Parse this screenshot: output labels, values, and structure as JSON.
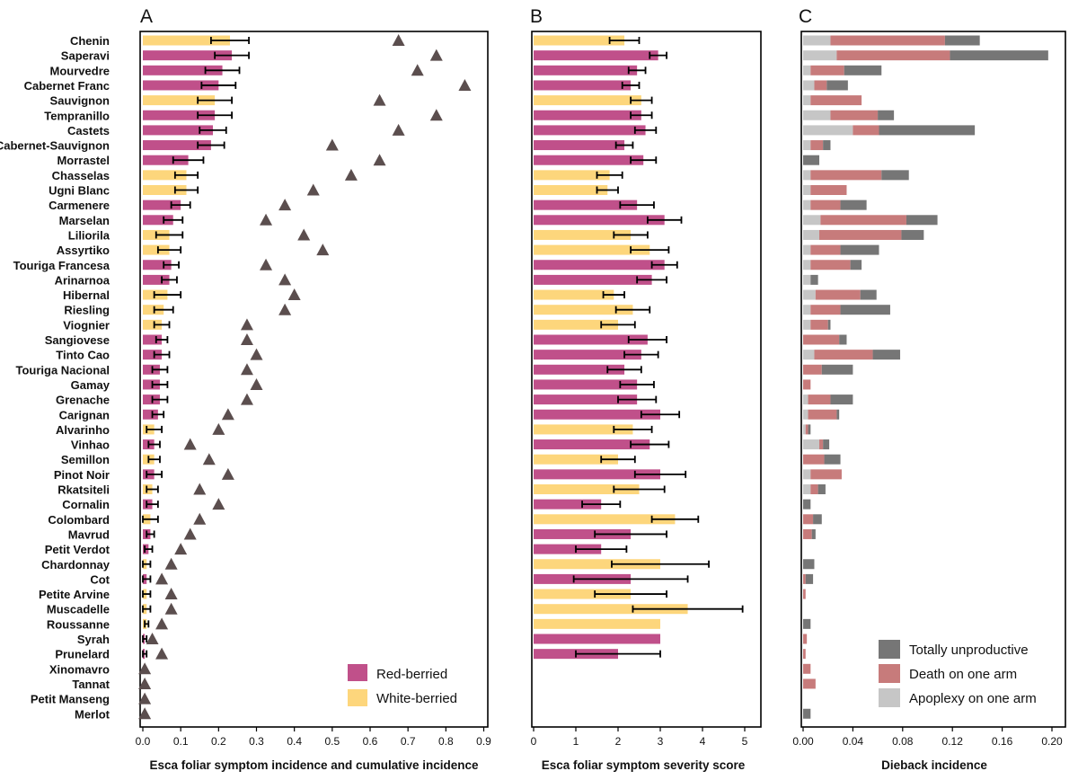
{
  "cultivars": [
    "Chenin",
    "Saperavi",
    "Mourvedre",
    "Cabernet Franc",
    "Sauvignon",
    "Tempranillo",
    "Castets",
    "Cabernet-Sauvignon",
    "Morrastel",
    "Chasselas",
    "Ugni Blanc",
    "Carmenere",
    "Marselan",
    "Liliorila",
    "Assyrtiko",
    "Touriga Francesa",
    "Arinarnoa",
    "Hibernal",
    "Riesling",
    "Viognier",
    "Sangiovese",
    "Tinto Cao",
    "Touriga Nacional",
    "Gamay",
    "Grenache",
    "Carignan",
    "Alvarinho",
    "Vinhao",
    "Semillon",
    "Pinot Noir",
    "Rkatsiteli",
    "Cornalin",
    "Colombard",
    "Mavrud",
    "Petit Verdot",
    "Chardonnay",
    "Cot",
    "Petite Arvine",
    "Muscadelle",
    "Roussanne",
    "Syrah",
    "Prunelard",
    "Xinomavro",
    "Tannat",
    "Petit Manseng",
    "Merlot"
  ],
  "berry_color": [
    "W",
    "R",
    "R",
    "R",
    "W",
    "R",
    "R",
    "R",
    "R",
    "W",
    "W",
    "R",
    "R",
    "W",
    "W",
    "R",
    "R",
    "W",
    "W",
    "W",
    "R",
    "R",
    "R",
    "R",
    "R",
    "R",
    "W",
    "R",
    "W",
    "R",
    "W",
    "R",
    "W",
    "R",
    "R",
    "W",
    "R",
    "W",
    "W",
    "W",
    "R",
    "R",
    "R",
    "R",
    "W",
    "R"
  ],
  "colors": {
    "red_berried": "#c0508a",
    "white_berried": "#fdd67c",
    "triangle": "#5b4e4e",
    "totally_unproductive": "#767676",
    "death_on_one_arm": "#c77b7b",
    "apoplexy_on_one_arm": "#c6c6c6",
    "error_bar": "#000000"
  },
  "legend_berry": {
    "red": "Red-berried",
    "white": "White-berried"
  },
  "legend_dieback": {
    "totally_unproductive": "Totally unproductive",
    "death_on_one_arm": "Death on one arm",
    "apoplexy_on_one_arm": "Apoplexy on one arm"
  },
  "chart_data": [
    {
      "panel": "A",
      "type": "bar",
      "xlabel": "Esca foliar symptom incidence and cumulative incidence",
      "xlim": [
        0,
        0.9
      ],
      "xticks": [
        "0.0",
        "0.1",
        "0.2",
        "0.3",
        "0.4",
        "0.5",
        "0.6",
        "0.7",
        "0.8",
        "0.9"
      ],
      "series": [
        {
          "name": "incidence",
          "values": [
            0.23,
            0.235,
            0.21,
            0.2,
            0.19,
            0.19,
            0.185,
            0.18,
            0.12,
            0.115,
            0.115,
            0.1,
            0.08,
            0.07,
            0.07,
            0.075,
            0.07,
            0.065,
            0.055,
            0.05,
            0.05,
            0.05,
            0.045,
            0.045,
            0.045,
            0.04,
            0.03,
            0.03,
            0.03,
            0.03,
            0.025,
            0.025,
            0.02,
            0.02,
            0.015,
            0.01,
            0.01,
            0.01,
            0.01,
            0.01,
            0.005,
            0.005,
            0,
            0,
            0,
            0
          ],
          "error": [
            0.05,
            0.045,
            0.045,
            0.045,
            0.045,
            0.045,
            0.035,
            0.035,
            0.04,
            0.03,
            0.03,
            0.025,
            0.025,
            0.035,
            0.03,
            0.02,
            0.02,
            0.035,
            0.025,
            0.02,
            0.015,
            0.02,
            0.02,
            0.02,
            0.02,
            0.015,
            0.02,
            0.015,
            0.015,
            0.02,
            0.015,
            0.015,
            0.02,
            0.01,
            0.01,
            0.01,
            0.01,
            0.01,
            0.01,
            0.005,
            0.005,
            0.005,
            0,
            0,
            0,
            0
          ]
        },
        {
          "name": "cumulative incidence",
          "values": [
            0.675,
            0.775,
            0.725,
            0.85,
            0.625,
            0.775,
            0.675,
            0.5,
            0.625,
            0.55,
            0.45,
            0.375,
            0.325,
            0.425,
            0.475,
            0.325,
            0.375,
            0.4,
            0.375,
            0.275,
            0.275,
            0.3,
            0.275,
            0.3,
            0.275,
            0.225,
            0.2,
            0.125,
            0.175,
            0.225,
            0.15,
            0.2,
            0.15,
            0.125,
            0.1,
            0.075,
            0.05,
            0.075,
            0.075,
            0.05,
            0.025,
            0.05,
            0.005,
            0.005,
            0.005,
            0.005
          ]
        }
      ]
    },
    {
      "panel": "B",
      "type": "bar",
      "xlabel": "Esca foliar symptom severity score",
      "xlim": [
        0,
        5.2
      ],
      "xticks": [
        "0",
        "1",
        "2",
        "3",
        "4",
        "5"
      ],
      "values": [
        2.15,
        2.95,
        2.45,
        2.3,
        2.55,
        2.55,
        2.65,
        2.15,
        2.6,
        1.8,
        1.75,
        2.45,
        3.1,
        2.3,
        2.75,
        3.1,
        2.8,
        1.9,
        2.35,
        2.0,
        2.7,
        2.55,
        2.15,
        2.45,
        2.45,
        3.0,
        2.35,
        2.75,
        2.0,
        3.0,
        2.5,
        1.6,
        3.35,
        2.3,
        1.6,
        3.0,
        2.3,
        2.3,
        3.65,
        3.0,
        3.0,
        2.0,
        null,
        null,
        null,
        null
      ],
      "error": [
        0.35,
        0.2,
        0.2,
        0.2,
        0.25,
        0.25,
        0.25,
        0.2,
        0.3,
        0.3,
        0.25,
        0.4,
        0.4,
        0.4,
        0.45,
        0.3,
        0.35,
        0.25,
        0.4,
        0.4,
        0.45,
        0.4,
        0.4,
        0.4,
        0.45,
        0.45,
        0.45,
        0.45,
        0.4,
        0.6,
        0.6,
        0.45,
        0.55,
        0.85,
        0.6,
        1.15,
        1.35,
        0.85,
        1.3,
        0,
        0,
        1.0,
        null,
        null,
        null,
        null
      ]
    },
    {
      "panel": "C",
      "type": "bar",
      "xlabel": "Dieback incidence",
      "xlim": [
        0,
        0.2
      ],
      "xticks": [
        "0.00",
        "0.04",
        "0.08",
        "0.12",
        "0.16",
        "0.20"
      ],
      "series": [
        {
          "name": "Apoplexy on one arm",
          "values": [
            0.022,
            0.027,
            0.006,
            0.009,
            0.006,
            0.022,
            0.04,
            0.006,
            0,
            0.006,
            0.006,
            0.006,
            0.014,
            0.013,
            0.006,
            0.006,
            0.006,
            0.01,
            0.006,
            0.006,
            0,
            0.009,
            0,
            0,
            0.004,
            0.004,
            0.002,
            0.013,
            0,
            0.006,
            0.006,
            0,
            0,
            0,
            0,
            0,
            0,
            0,
            0,
            0,
            0,
            0,
            0,
            0,
            0,
            0
          ]
        },
        {
          "name": "Death on one arm",
          "values": [
            0.092,
            0.091,
            0.027,
            0.01,
            0.041,
            0.038,
            0.021,
            0.01,
            0,
            0.057,
            0.029,
            0.024,
            0.069,
            0.066,
            0.024,
            0.032,
            0,
            0.036,
            0.024,
            0.014,
            0.029,
            0.047,
            0.015,
            0.006,
            0.018,
            0.023,
            0.002,
            0.003,
            0.017,
            0.025,
            0.006,
            0,
            0.008,
            0.007,
            0,
            0,
            0.002,
            0.002,
            0,
            0,
            0.003,
            0.002,
            0.006,
            0.01,
            0,
            0
          ]
        },
        {
          "name": "Totally unproductive",
          "values": [
            0.028,
            0.079,
            0.03,
            0.017,
            0,
            0.013,
            0.077,
            0.006,
            0.013,
            0.022,
            0,
            0.021,
            0.025,
            0.018,
            0.031,
            0.009,
            0.006,
            0.013,
            0.04,
            0.002,
            0.006,
            0.022,
            0.025,
            0,
            0.018,
            0.002,
            0.002,
            0.005,
            0.013,
            0,
            0.006,
            0.006,
            0.007,
            0.003,
            0,
            0.009,
            0.006,
            0,
            0,
            0.006,
            0,
            0,
            0,
            0,
            0,
            0.006
          ]
        }
      ]
    }
  ]
}
